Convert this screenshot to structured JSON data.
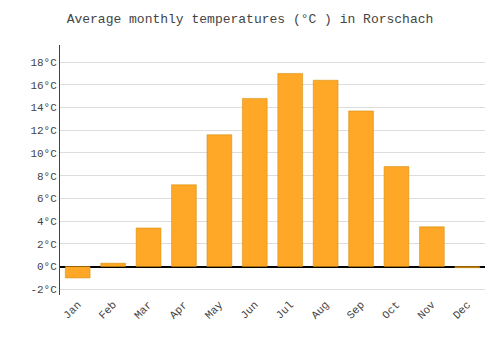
{
  "chart_data": {
    "type": "bar",
    "title": "Average monthly temperatures (°C ) in Rorschach",
    "categories": [
      "Jan",
      "Feb",
      "Mar",
      "Apr",
      "May",
      "Jun",
      "Jul",
      "Aug",
      "Sep",
      "Oct",
      "Nov",
      "Dec"
    ],
    "values": [
      -1.0,
      0.3,
      3.4,
      7.2,
      11.6,
      14.8,
      17.0,
      16.4,
      13.7,
      8.8,
      3.5,
      -0.1
    ],
    "color": "#FFA726",
    "ylim": [
      -2.5,
      19.5
    ],
    "yticks": [
      {
        "value": -2,
        "label": "-2°C"
      },
      {
        "value": 0,
        "label": "0°C"
      },
      {
        "value": 2,
        "label": "2°C"
      },
      {
        "value": 4,
        "label": "4°C"
      },
      {
        "value": 6,
        "label": "6°C"
      },
      {
        "value": 8,
        "label": "8°C"
      },
      {
        "value": 10,
        "label": "10°C"
      },
      {
        "value": 12,
        "label": "12°C"
      },
      {
        "value": 14,
        "label": "14°C"
      },
      {
        "value": 16,
        "label": "16°C"
      },
      {
        "value": 18,
        "label": "18°C"
      }
    ],
    "grid": true
  }
}
